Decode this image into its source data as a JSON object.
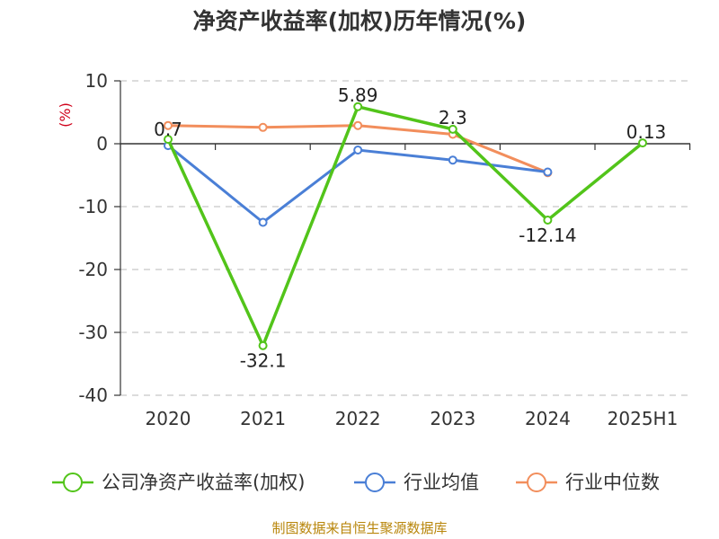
{
  "chart_data": {
    "type": "line",
    "title": "净资产收益率(加权)历年情况(%)",
    "ylabel": "(%)",
    "xlabel": "",
    "ylim": [
      -40,
      10
    ],
    "yticks": [
      10,
      0,
      -10,
      -20,
      -30,
      -40
    ],
    "categories": [
      "2020",
      "2021",
      "2022",
      "2023",
      "2024",
      "2025H1"
    ],
    "grid": true,
    "legend_position": "bottom",
    "series": [
      {
        "name": "公司净资产收益率(加权)",
        "color": "#52c41a",
        "values": [
          0.7,
          -32.1,
          5.89,
          2.3,
          -12.14,
          0.13
        ],
        "labels": [
          "0.7",
          "-32.1",
          "5.89",
          "2.3",
          "-12.14",
          "0.13"
        ]
      },
      {
        "name": "行业均值",
        "color": "#4a7fd6",
        "values": [
          -0.3,
          -12.5,
          -1.0,
          -2.6,
          -4.5,
          null
        ]
      },
      {
        "name": "行业中位数",
        "color": "#f28e5c",
        "values": [
          2.9,
          2.6,
          2.9,
          1.5,
          -4.6,
          null
        ]
      }
    ]
  },
  "footer": {
    "source": "制图数据来自恒生聚源数据库"
  }
}
